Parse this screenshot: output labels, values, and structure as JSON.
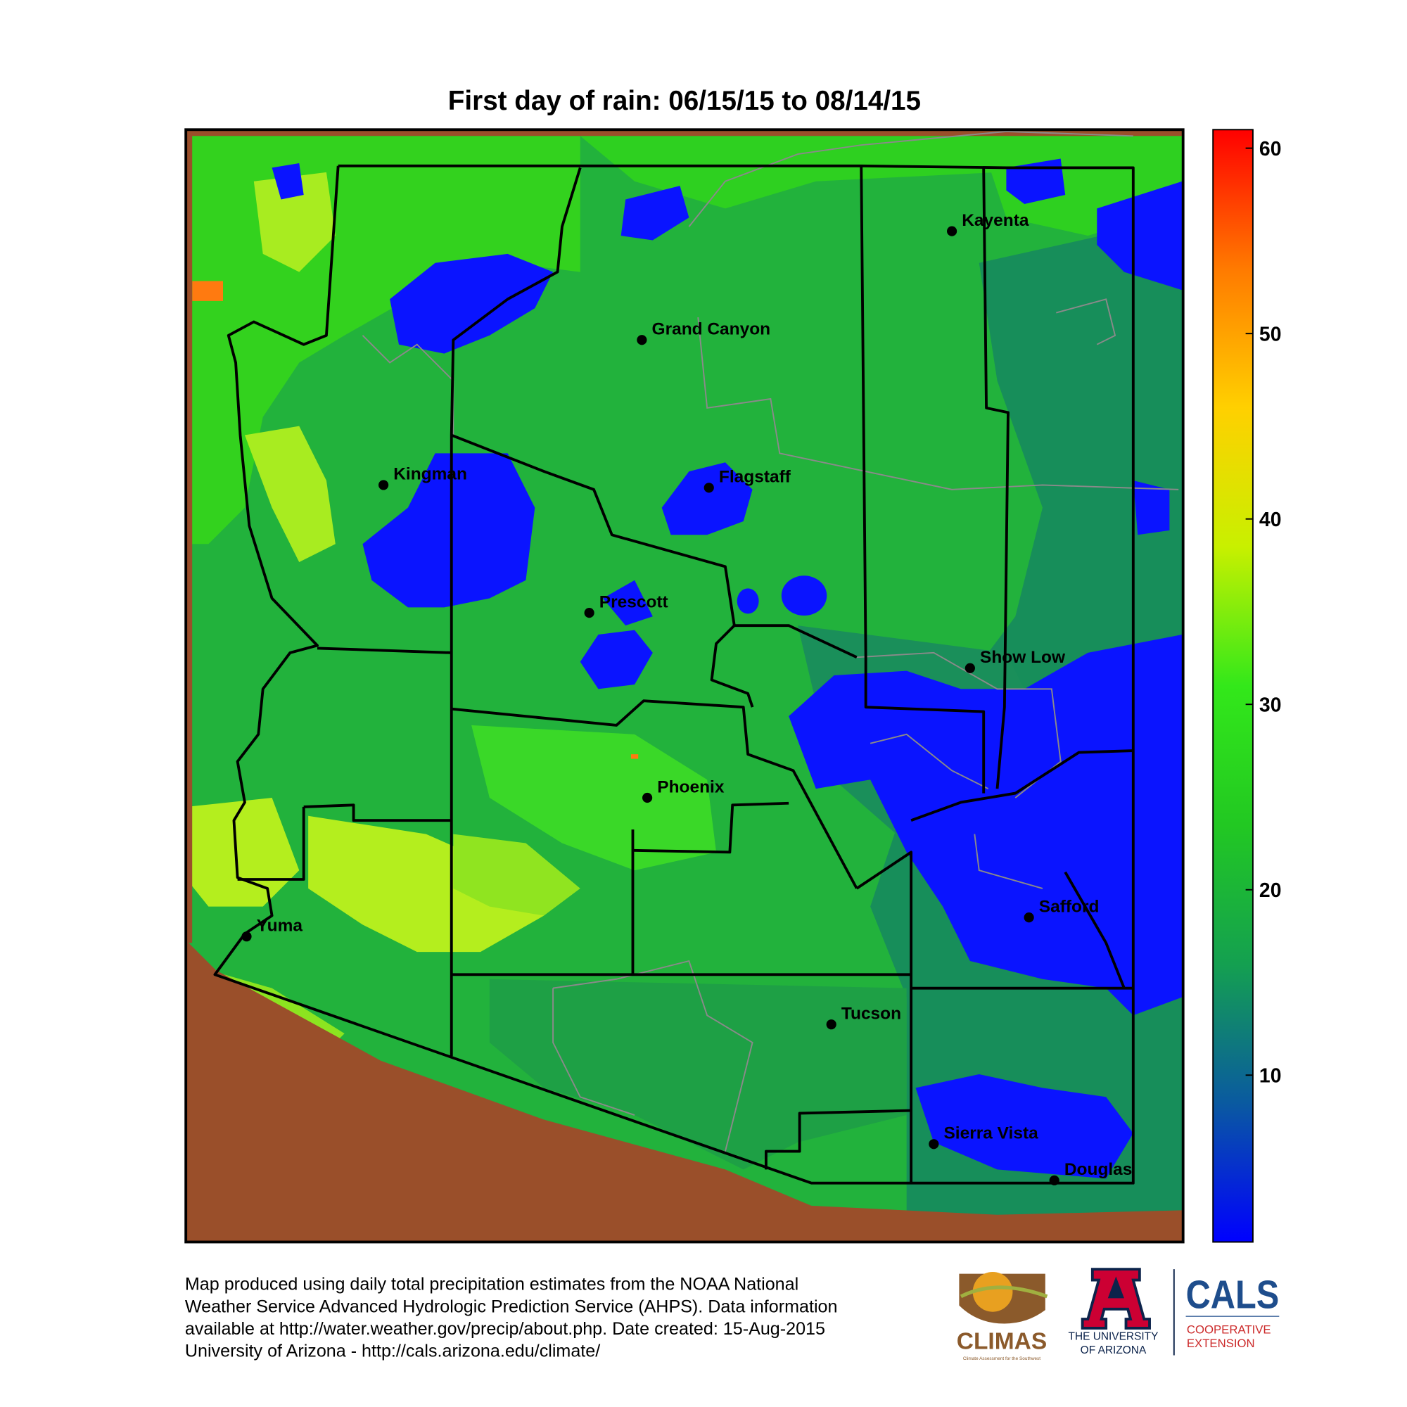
{
  "title": "First day of rain: 06/15/15 to 08/14/15",
  "colorbar": {
    "range": [
      1,
      61
    ],
    "ticks": [
      10,
      20,
      30,
      40,
      50,
      60
    ],
    "colors": [
      "#0000ff",
      "#0a5aa0",
      "#14a050",
      "#22c822",
      "#33e81a",
      "#c8f000",
      "#ffd000",
      "#ff7a00",
      "#ff0000"
    ]
  },
  "cities": [
    "Kayenta",
    "Grand Canyon",
    "Kingman",
    "Flagstaff",
    "Prescott",
    "Show Low",
    "Phoenix",
    "Safford",
    "Yuma",
    "Tucson",
    "Sierra Vista",
    "Douglas"
  ],
  "footer": {
    "lines": [
      "Map produced using daily total precipitation estimates from the NOAA National",
      "Weather Service Advanced Hydrologic Prediction Service (AHPS). Data information",
      "available at http://water.weather.gov/precip/about.php. Date created: 15-Aug-2015",
      "University of Arizona - http://cals.arizona.edu/climate/"
    ]
  },
  "logos": {
    "climas": "CLIMAS",
    "climas_tagline": "Climate Assessment for the Southwest",
    "ua": [
      "THE UNIVERSITY",
      "OF ARIZONA"
    ],
    "cals": "CALS",
    "cals_sub": [
      "COOPERATIVE",
      "EXTENSION"
    ]
  }
}
